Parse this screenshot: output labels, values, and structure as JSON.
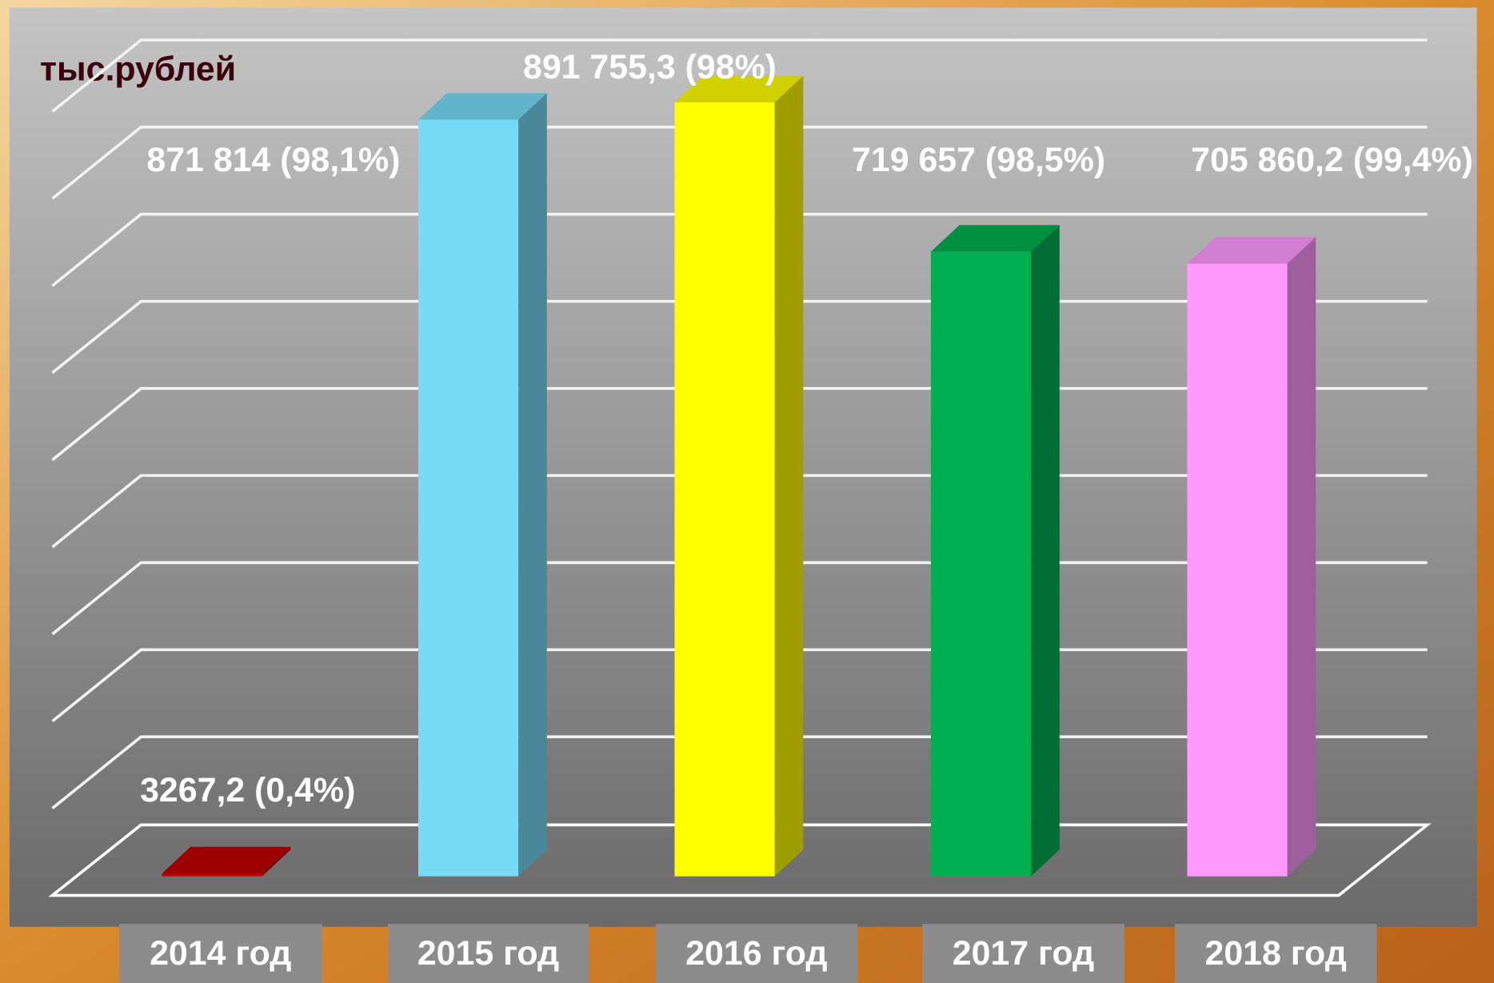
{
  "chart_data": {
    "type": "bar3d",
    "y_label": "тыс.рублей",
    "categories": [
      "2014 год",
      "2015 год",
      "2016 год",
      "2017 год",
      "2018 год"
    ],
    "values": [
      3267.2,
      871814,
      891755.3,
      719657,
      705860.2
    ],
    "value_labels": [
      "3267,2 (0,4%)",
      "871 814 (98,1%)",
      "891 755,3 (98%)",
      "719 657 (98,5%)",
      "705 860,2 (99,4%)"
    ],
    "colors": [
      "#c00000",
      "#76dcf5",
      "#ffff00",
      "#00b050",
      "#ff99ff"
    ],
    "ylim": [
      0,
      900000
    ],
    "yticks": [
      0,
      100000,
      200000,
      300000,
      400000,
      500000,
      600000,
      700000,
      800000,
      900000
    ],
    "grid": true
  }
}
